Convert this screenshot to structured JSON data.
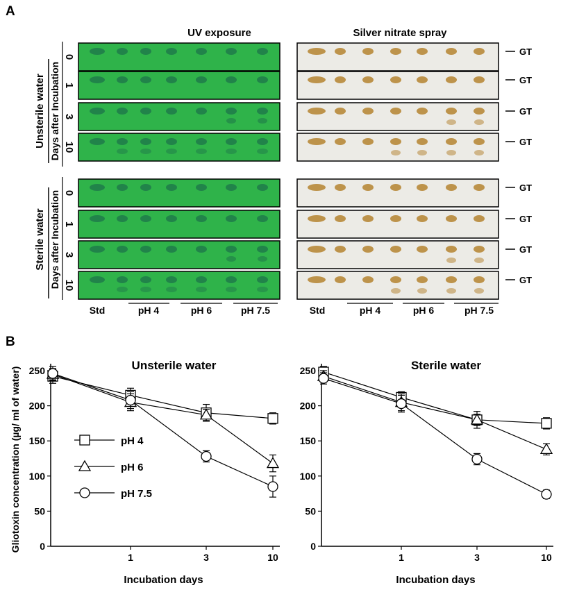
{
  "panel_labels": {
    "a": "A",
    "b": "B"
  },
  "column_titles": {
    "uv": "UV exposure",
    "silver": "Silver nitrate spray"
  },
  "groups": [
    {
      "main": "Unsterile water",
      "sub": "Days after Incubation",
      "days": [
        "0",
        "1",
        "3",
        "10"
      ]
    },
    {
      "main": "Sterile water",
      "sub": "Days after Incubation",
      "days": [
        "0",
        "1",
        "3",
        "10"
      ]
    }
  ],
  "gt_label": "GT",
  "lane_labels": {
    "std": "Std",
    "ph4": "pH 4",
    "ph6": "pH 6",
    "ph75": "pH 7.5"
  },
  "colors": {
    "uv_plate": "#2fb34a",
    "uv_spot": "#1f7a4a",
    "silver_plate": "#ecebe6",
    "silver_spot": "#b8893a"
  },
  "chart_data": [
    {
      "type": "line",
      "title": "Unsterile water",
      "xlabel": "Incubation days",
      "ylabel": "Gliotoxin concentration (µg/ ml of water)",
      "x": [
        0,
        1,
        3,
        10
      ],
      "x_tick_labels": [
        "",
        "1",
        "3",
        "10"
      ],
      "ylim": [
        0,
        250
      ],
      "y_ticks": [
        0,
        50,
        100,
        150,
        200,
        250
      ],
      "legend": "left",
      "series": [
        {
          "name": "pH 4",
          "marker": "square",
          "values": [
            242,
            215,
            190,
            182
          ],
          "errors": [
            10,
            10,
            12,
            8
          ]
        },
        {
          "name": "pH 6",
          "marker": "triangle",
          "values": [
            245,
            205,
            187,
            118
          ],
          "errors": [
            8,
            12,
            8,
            12
          ]
        },
        {
          "name": "pH 7.5",
          "marker": "circle",
          "values": [
            246,
            208,
            128,
            85
          ],
          "errors": [
            10,
            12,
            8,
            15
          ]
        }
      ]
    },
    {
      "type": "line",
      "title": "Sterile water",
      "xlabel": "Incubation days",
      "ylabel": "",
      "x": [
        0,
        1,
        3,
        10
      ],
      "x_tick_labels": [
        "",
        "1",
        "3",
        "10"
      ],
      "ylim": [
        0,
        250
      ],
      "y_ticks": [
        0,
        50,
        100,
        150,
        200,
        250
      ],
      "legend": "none",
      "series": [
        {
          "name": "pH 4",
          "marker": "square",
          "values": [
            248,
            212,
            180,
            175
          ],
          "errors": [
            8,
            8,
            8,
            8
          ]
        },
        {
          "name": "pH 6",
          "marker": "triangle",
          "values": [
            242,
            205,
            180,
            138
          ],
          "errors": [
            8,
            12,
            12,
            8
          ]
        },
        {
          "name": "pH 7.5",
          "marker": "circle",
          "values": [
            239,
            203,
            124,
            74
          ],
          "errors": [
            8,
            12,
            8,
            6
          ]
        }
      ]
    }
  ]
}
